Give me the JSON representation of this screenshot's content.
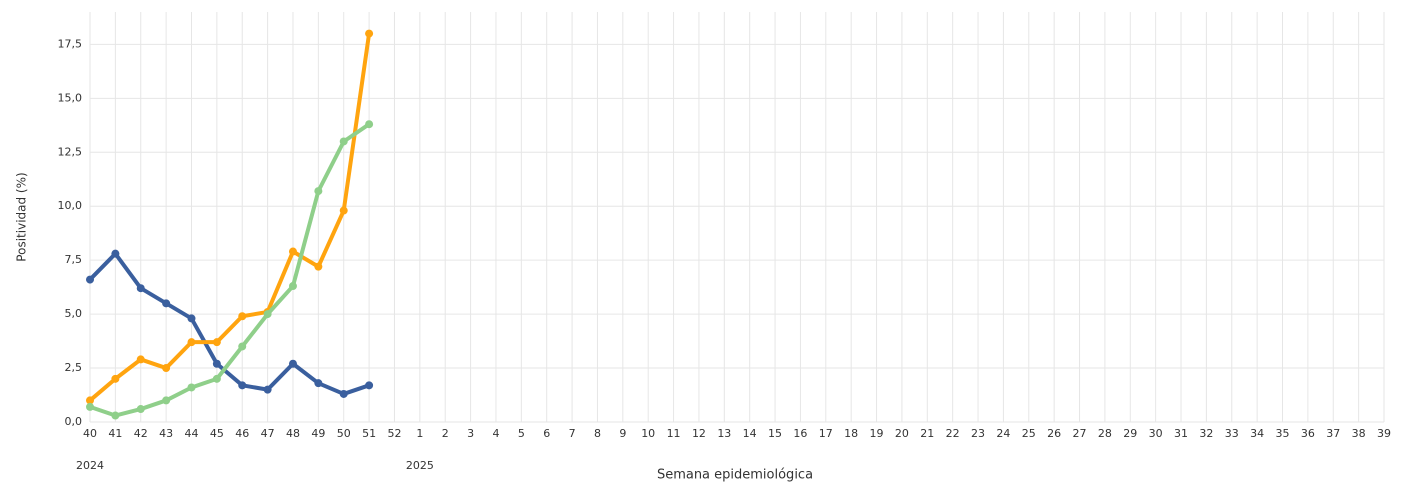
{
  "chart_data": {
    "type": "line",
    "ylabel": "Positividad (%)",
    "xlabel": "Semana epidemiológica",
    "categories": [
      "40",
      "41",
      "42",
      "43",
      "44",
      "45",
      "46",
      "47",
      "48",
      "49",
      "50",
      "51",
      "52",
      "1",
      "2",
      "3",
      "4",
      "5",
      "6",
      "7",
      "8",
      "9",
      "10",
      "11",
      "12",
      "13",
      "14",
      "15",
      "16",
      "17",
      "18",
      "19",
      "20",
      "21",
      "22",
      "23",
      "24",
      "25",
      "26",
      "27",
      "28",
      "29",
      "30",
      "31",
      "32",
      "33",
      "34",
      "35",
      "36",
      "37",
      "38",
      "39"
    ],
    "year_labels": [
      {
        "label": "2024",
        "category": "40"
      },
      {
        "label": "2025",
        "category": "1"
      }
    ],
    "series": [
      {
        "color": "#3a5f9e",
        "values": [
          6.6,
          7.8,
          6.2,
          5.5,
          4.8,
          2.7,
          1.7,
          1.5,
          2.7,
          1.8,
          1.3,
          1.7,
          null,
          null,
          null,
          null,
          null,
          null,
          null,
          null,
          null,
          null,
          null,
          null,
          null,
          null,
          null,
          null,
          null,
          null,
          null,
          null,
          null,
          null,
          null,
          null,
          null,
          null,
          null,
          null,
          null,
          null,
          null,
          null,
          null,
          null,
          null,
          null,
          null,
          null,
          null,
          null
        ]
      },
      {
        "color": "#ffa40f",
        "values": [
          1.0,
          2.0,
          2.9,
          2.5,
          3.7,
          3.7,
          4.9,
          5.1,
          7.9,
          7.2,
          9.8,
          18.0,
          null,
          null,
          null,
          null,
          null,
          null,
          null,
          null,
          null,
          null,
          null,
          null,
          null,
          null,
          null,
          null,
          null,
          null,
          null,
          null,
          null,
          null,
          null,
          null,
          null,
          null,
          null,
          null,
          null,
          null,
          null,
          null,
          null,
          null,
          null,
          null,
          null,
          null,
          null,
          null
        ]
      },
      {
        "color": "#8fcf8a",
        "values": [
          0.7,
          0.3,
          0.6,
          1.0,
          1.6,
          2.0,
          3.5,
          5.0,
          6.3,
          10.7,
          13.0,
          13.8,
          null,
          null,
          null,
          null,
          null,
          null,
          null,
          null,
          null,
          null,
          null,
          null,
          null,
          null,
          null,
          null,
          null,
          null,
          null,
          null,
          null,
          null,
          null,
          null,
          null,
          null,
          null,
          null,
          null,
          null,
          null,
          null,
          null,
          null,
          null,
          null,
          null,
          null,
          null,
          null
        ]
      }
    ],
    "ylim": [
      0,
      19
    ],
    "yticks": [
      {
        "value": 0,
        "label": "0,0"
      },
      {
        "value": 2.5,
        "label": "2,5"
      },
      {
        "value": 5,
        "label": "5,0"
      },
      {
        "value": 7.5,
        "label": "7,5"
      },
      {
        "value": 10,
        "label": "10,0"
      },
      {
        "value": 12.5,
        "label": "12,5"
      },
      {
        "value": 15,
        "label": "15,0"
      },
      {
        "value": 17.5,
        "label": "17,5"
      }
    ],
    "grid": true
  }
}
